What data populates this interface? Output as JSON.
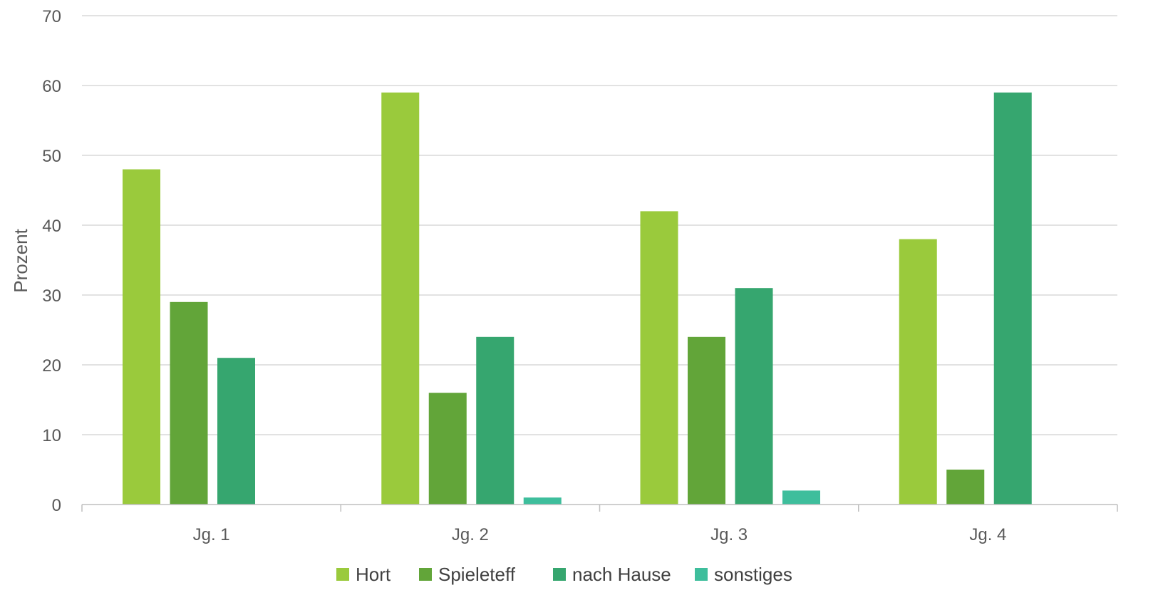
{
  "chart_data": {
    "type": "bar",
    "categories": [
      "Jg. 1",
      "Jg. 2",
      "Jg. 3",
      "Jg. 4"
    ],
    "series": [
      {
        "name": "Hort",
        "color": "#9ACA3C",
        "values": [
          48,
          59,
          42,
          38
        ]
      },
      {
        "name": "Spieleteff",
        "color": "#62A539",
        "values": [
          29,
          16,
          24,
          5
        ]
      },
      {
        "name": "nach Hause",
        "color": "#36A66F",
        "values": [
          21,
          24,
          31,
          59
        ]
      },
      {
        "name": "sonstiges",
        "color": "#3EBE9C",
        "values": [
          0,
          1,
          2,
          0
        ]
      }
    ],
    "ylabel": "Prozent",
    "ylim": [
      0,
      70
    ],
    "yticks": [
      0,
      10,
      20,
      30,
      40,
      50,
      60,
      70
    ],
    "grid": true,
    "legend_position": "bottom"
  }
}
